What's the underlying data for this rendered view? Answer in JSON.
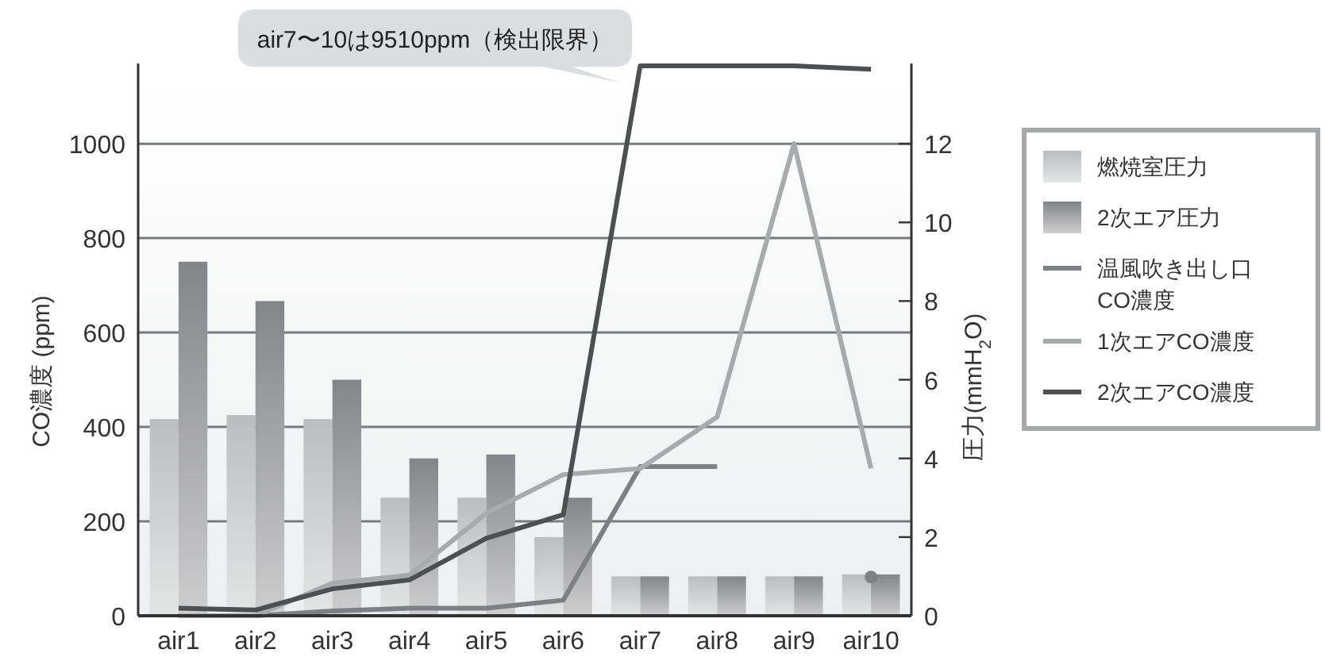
{
  "chart_data": {
    "type": "bar",
    "categories": [
      "air1",
      "air2",
      "air3",
      "air4",
      "air5",
      "air6",
      "air7",
      "air8",
      "air9",
      "air10"
    ],
    "series": [
      {
        "name": "燃焼室圧力",
        "axis": "y2",
        "color": "#bcbdbf",
        "values": [
          5.0,
          5.1,
          5.0,
          3.0,
          3.0,
          2.0,
          1.0,
          1.0,
          1.0,
          1.05
        ]
      },
      {
        "name": "2次エア圧力",
        "axis": "y2",
        "color": "#848588",
        "values": [
          9.0,
          8.0,
          6.0,
          4.0,
          4.1,
          3.0,
          1.0,
          1.0,
          1.0,
          1.05
        ]
      },
      {
        "name": "温風吹き出し口CO濃度",
        "type": "line",
        "axis": "y",
        "color": "#7f8083",
        "values": [
          0,
          0,
          10,
          16,
          16,
          33,
          316,
          316,
          null,
          82
        ]
      },
      {
        "name": "1次エアCO濃度",
        "type": "line",
        "axis": "y",
        "color": "#a9aaac",
        "values": [
          0,
          0,
          69,
          86,
          217,
          299,
          312,
          421,
          1000,
          312
        ]
      },
      {
        "name": "2次エアCO濃度",
        "type": "line",
        "axis": "y",
        "color": "#4e4f51",
        "values": [
          16,
          12,
          57,
          76,
          164,
          214,
          1165,
          1165,
          1165,
          1158
        ]
      }
    ],
    "ylabel": "CO濃度 (ppm)",
    "y2label": "圧力(mmH$_{2}$O)",
    "ylim": [
      0,
      1170
    ],
    "yticks": [
      0,
      200,
      400,
      600,
      800,
      1000
    ],
    "y2lim": [
      0,
      14.04
    ],
    "y2ticks": [
      0,
      2,
      4,
      6,
      8,
      10,
      12
    ],
    "grid": "y",
    "legend": "right",
    "annotations": [
      "air7〜10は9510ppm（検出限界）"
    ]
  }
}
